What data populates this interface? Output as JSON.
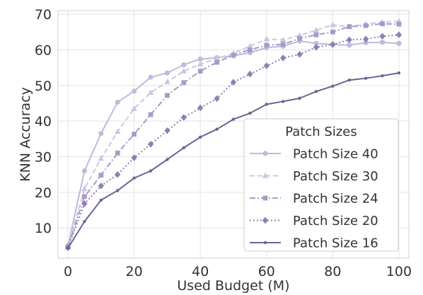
{
  "chart_data": {
    "type": "line",
    "title": "",
    "xlabel": "Used Budget (M)",
    "ylabel": "KNN Accuracy",
    "xlim": [
      -3,
      103
    ],
    "ylim": [
      1.5,
      71
    ],
    "grid": true,
    "x_ticks": [
      "0",
      "20",
      "40",
      "60",
      "80",
      "100"
    ],
    "y_ticks": [
      "10",
      "20",
      "30",
      "40",
      "50",
      "60",
      "70"
    ],
    "legend": {
      "title": "Patch Sizes",
      "position": "lower-right"
    },
    "x": [
      0,
      5,
      10,
      15,
      20,
      25,
      30,
      35,
      40,
      45,
      50,
      55,
      60,
      65,
      70,
      75,
      80,
      85,
      90,
      95,
      100
    ],
    "series": [
      {
        "name": "Patch Size 40",
        "color": "#c2b9dc",
        "dash": "solid",
        "marker": "circle",
        "values": [
          5.0,
          26.0,
          36.5,
          45.3,
          48.4,
          52.3,
          53.5,
          55.8,
          57.4,
          57.8,
          58.3,
          59.2,
          60.6,
          61.0,
          62.5,
          61.8,
          61.5,
          61.3,
          62.0,
          62.1,
          61.8
        ]
      },
      {
        "name": "Patch Size 30",
        "color": "#cdc6e3",
        "dash": "dashed",
        "marker": "triangle",
        "values": [
          4.8,
          21.0,
          29.5,
          37.0,
          43.5,
          48.0,
          51.0,
          54.0,
          56.0,
          57.5,
          59.0,
          61.0,
          63.0,
          62.8,
          64.0,
          65.5,
          67.0,
          66.5,
          67.2,
          67.8,
          68.0
        ]
      },
      {
        "name": "Patch Size 24",
        "color": "#a89bc9",
        "dash": "dashdot",
        "marker": "square",
        "values": [
          4.6,
          18.8,
          24.8,
          31.0,
          36.3,
          41.8,
          47.2,
          50.8,
          54.0,
          56.5,
          58.5,
          60.0,
          61.3,
          61.5,
          63.2,
          64.2,
          65.0,
          66.5,
          66.8,
          67.3,
          67.2
        ]
      },
      {
        "name": "Patch Size 20",
        "color": "#8e7fb5",
        "dash": "dotted",
        "marker": "diamond",
        "values": [
          4.5,
          16.8,
          21.8,
          25.0,
          29.7,
          33.5,
          37.3,
          41.0,
          43.7,
          46.3,
          50.9,
          53.2,
          55.5,
          57.7,
          58.7,
          60.7,
          61.5,
          62.8,
          63.0,
          63.8,
          64.2
        ]
      },
      {
        "name": "Patch Size 16",
        "color": "#716296",
        "dash": "solid",
        "marker": "point",
        "values": [
          4.3,
          11.8,
          17.8,
          20.5,
          24.0,
          26.0,
          29.2,
          32.5,
          35.5,
          37.7,
          40.5,
          42.2,
          44.7,
          45.5,
          46.4,
          48.3,
          49.8,
          51.5,
          52.0,
          52.7,
          53.5
        ]
      }
    ]
  }
}
